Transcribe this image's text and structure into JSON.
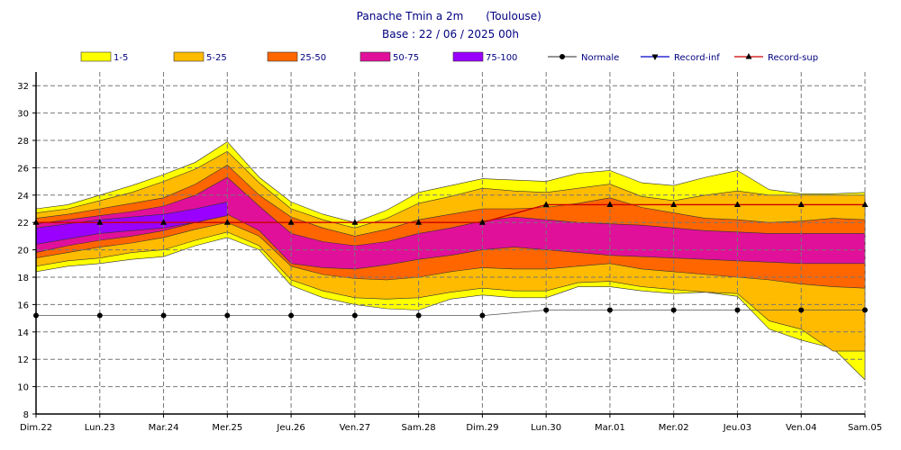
{
  "chart_data": {
    "type": "area",
    "title": "Panache Tmin a 2m",
    "location": "(Toulouse)",
    "subtitle": "Base : 22 / 06 / 2025 00h",
    "categories": [
      "Dim.22",
      "Lun.23",
      "Mar.24",
      "Mer.25",
      "Jeu.26",
      "Ven.27",
      "Sam.28",
      "Dim.29",
      "Lun.30",
      "Mar.01",
      "Mer.02",
      "Jeu.03",
      "Ven.04",
      "Sam.05"
    ],
    "x": [
      0,
      0.5,
      1,
      1.5,
      2,
      2.5,
      3,
      3.5,
      4,
      4.5,
      5,
      5.5,
      6,
      6.5,
      7,
      7.5,
      8,
      8.5,
      9,
      9.5,
      10,
      10.5,
      11,
      11.5,
      12,
      12.5,
      13
    ],
    "ylim": [
      8,
      33
    ],
    "yticks": [
      8,
      10,
      12,
      14,
      16,
      18,
      20,
      22,
      24,
      26,
      28,
      30,
      32
    ],
    "grid": true,
    "legend_position": "top",
    "bands": [
      {
        "name": "1-5",
        "color": "#ffff00",
        "upper": [
          23.0,
          23.3,
          24.0,
          24.7,
          25.5,
          26.4,
          27.9,
          25.3,
          23.5,
          22.6,
          22.0,
          22.9,
          24.2,
          24.7,
          25.2,
          25.1,
          25.0,
          25.6,
          25.8,
          24.9,
          24.7,
          25.3,
          25.8,
          24.4,
          24.1,
          24.1,
          24.2
        ],
        "lower": [
          18.4,
          18.8,
          19.0,
          19.3,
          19.5,
          20.3,
          20.9,
          20.0,
          17.4,
          16.5,
          16.0,
          15.7,
          15.6,
          16.4,
          16.7,
          16.5,
          16.5,
          17.3,
          17.3,
          17.0,
          16.8,
          16.9,
          16.6,
          14.2,
          13.4,
          12.8,
          10.5
        ]
      },
      {
        "name": "5-25",
        "color": "#ffbb00",
        "upper": [
          22.7,
          23.0,
          23.6,
          24.2,
          25.0,
          25.9,
          27.2,
          24.9,
          23.0,
          22.2,
          21.6,
          22.3,
          23.4,
          23.9,
          24.5,
          24.3,
          24.2,
          24.5,
          24.8,
          23.9,
          23.6,
          24.0,
          24.3,
          24.0,
          24.0,
          24.0,
          24.0
        ],
        "lower": [
          18.8,
          19.2,
          19.4,
          19.8,
          20.0,
          20.7,
          21.3,
          20.3,
          17.8,
          17.0,
          16.5,
          16.4,
          16.5,
          16.9,
          17.2,
          17.0,
          17.0,
          17.6,
          17.7,
          17.3,
          17.1,
          16.9,
          16.8,
          14.8,
          14.2,
          12.6,
          12.6
        ]
      },
      {
        "name": "25-50",
        "color": "#ff6600",
        "upper": [
          22.3,
          22.6,
          23.0,
          23.4,
          23.8,
          24.8,
          26.2,
          24.0,
          22.4,
          21.6,
          21.0,
          21.5,
          22.2,
          22.6,
          23.0,
          23.0,
          23.1,
          23.4,
          23.8,
          23.1,
          22.7,
          22.3,
          22.2,
          22.0,
          22.1,
          22.3,
          22.2
        ],
        "lower": [
          19.4,
          19.8,
          20.2,
          20.5,
          20.9,
          21.5,
          22.0,
          21.0,
          18.8,
          18.2,
          17.9,
          17.8,
          18.0,
          18.4,
          18.7,
          18.6,
          18.6,
          18.8,
          19.0,
          18.6,
          18.4,
          18.2,
          18.0,
          17.8,
          17.5,
          17.3,
          17.2
        ]
      },
      {
        "name": "50-75",
        "color": "#e0109a",
        "upper": [
          21.9,
          22.2,
          22.5,
          22.8,
          23.2,
          24.0,
          25.3,
          23.2,
          21.2,
          20.6,
          20.3,
          20.6,
          21.2,
          21.6,
          22.1,
          22.4,
          22.2,
          22.0,
          21.9,
          21.8,
          21.6,
          21.4,
          21.3,
          21.2,
          21.2,
          21.2,
          21.2
        ],
        "lower": [
          19.8,
          20.3,
          20.7,
          21.0,
          21.4,
          22.0,
          22.6,
          21.4,
          19.0,
          18.7,
          18.6,
          18.9,
          19.3,
          19.6,
          20.0,
          20.2,
          20.0,
          19.8,
          19.6,
          19.5,
          19.4,
          19.3,
          19.2,
          19.1,
          19.0,
          19.0,
          19.0
        ]
      },
      {
        "name": "75-100",
        "color": "#9900ff",
        "upper": [
          21.6,
          21.9,
          22.2,
          22.4,
          22.6,
          23.0,
          23.5,
          null,
          null,
          null,
          null,
          null,
          null,
          null,
          null,
          null,
          null,
          null,
          null,
          null,
          null,
          null,
          null,
          null,
          null,
          null,
          null
        ],
        "lower": [
          20.4,
          20.8,
          21.2,
          21.4,
          21.6,
          22.0,
          22.5,
          null,
          null,
          null,
          null,
          null,
          null,
          null,
          null,
          null,
          null,
          null,
          null,
          null,
          null,
          null,
          null,
          null,
          null,
          null,
          null
        ]
      }
    ],
    "series": [
      {
        "name": "Normale",
        "color": "#555555",
        "marker": "circle",
        "x": [
          0,
          1,
          2,
          3,
          4,
          5,
          6,
          7,
          8,
          9,
          10,
          11,
          12,
          13
        ],
        "values": [
          15.2,
          15.2,
          15.2,
          15.2,
          15.2,
          15.2,
          15.2,
          15.2,
          15.6,
          15.6,
          15.6,
          15.6,
          15.6,
          15.6
        ]
      },
      {
        "name": "Record-inf",
        "color": "#0000cc",
        "marker": "triangle-down",
        "x": [],
        "values": []
      },
      {
        "name": "Record-sup",
        "color": "#cc0000",
        "marker": "triangle-up",
        "x": [
          0,
          1,
          2,
          3,
          4,
          5,
          6,
          7,
          8,
          9,
          10,
          11,
          12,
          13
        ],
        "values": [
          22.0,
          22.0,
          22.0,
          22.0,
          22.0,
          22.0,
          22.0,
          22.0,
          23.3,
          23.3,
          23.3,
          23.3,
          23.3,
          23.3
        ]
      }
    ]
  }
}
